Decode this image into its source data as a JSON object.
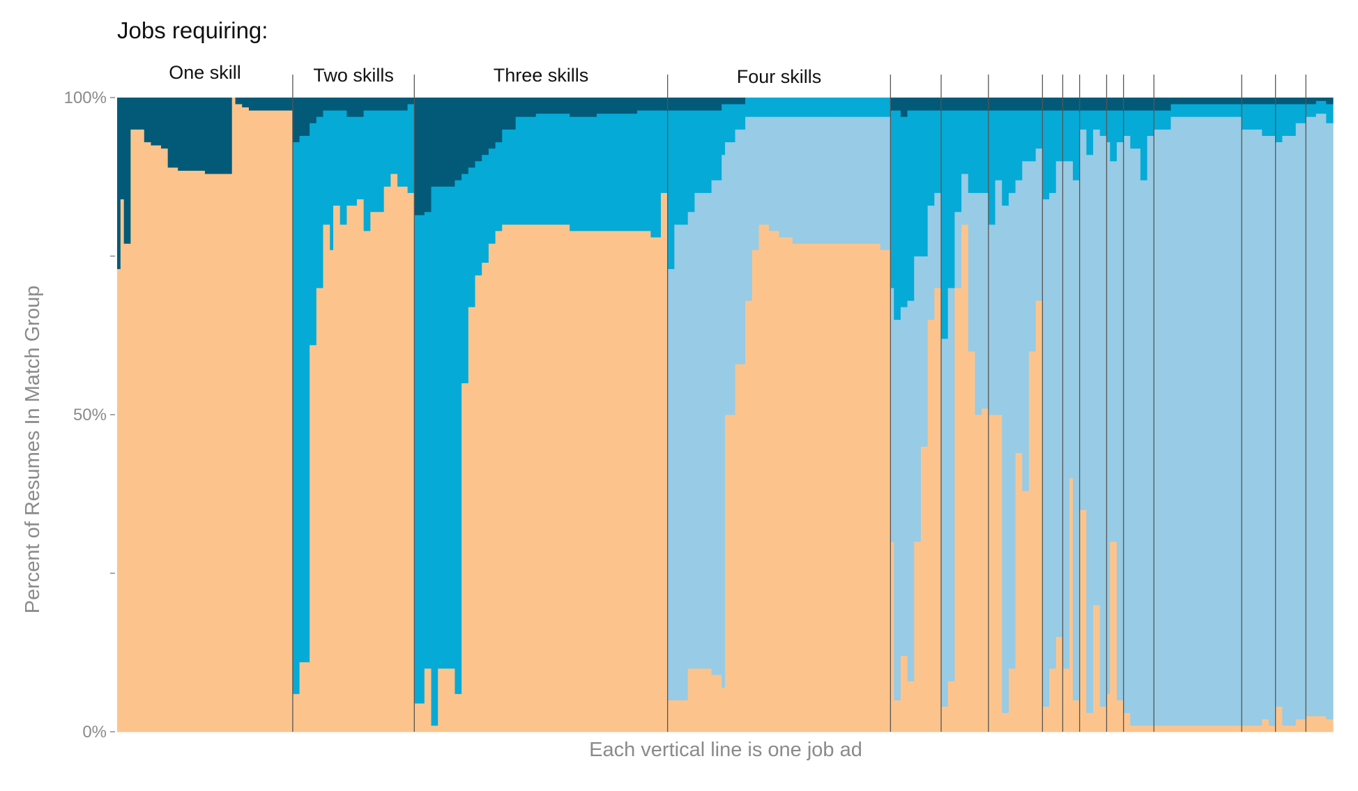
{
  "chart_data": {
    "type": "area",
    "subtype": "100% stacked bars, one column per job ad, grouped by skills required",
    "title": "Jobs requiring:",
    "xlabel": "Each vertical line is one job ad",
    "ylabel": "Percent of Resumes In Match Group",
    "ylim": [
      0,
      100
    ],
    "y_ticks": [
      {
        "value": 0,
        "label": "0%"
      },
      {
        "value": 25,
        "label": ""
      },
      {
        "value": 50,
        "label": "50%"
      },
      {
        "value": 75,
        "label": ""
      },
      {
        "value": 100,
        "label": "100%"
      }
    ],
    "total_job_ads": 360,
    "colors": {
      "orange": "#FCC48C",
      "light_blue": "#98CBE5",
      "medium_blue": "#06AAD6",
      "dark_blue": "#035A78",
      "divider": "#555555",
      "tick": "#8a8a8a"
    },
    "groups": [
      {
        "label": "One skill",
        "start": 0,
        "end": 52,
        "layers": [
          "orange",
          "dark_blue"
        ]
      },
      {
        "label": "Two skills",
        "start": 52,
        "end": 88,
        "layers": [
          "orange",
          "medium_blue",
          "dark_blue"
        ]
      },
      {
        "label": "Three skills",
        "start": 88,
        "end": 163,
        "layers": [
          "orange",
          "medium_blue",
          "dark_blue"
        ]
      },
      {
        "label": "Four skills",
        "start": 163,
        "end": 229,
        "layers": [
          "orange",
          "light_blue",
          "medium_blue",
          "dark_blue"
        ]
      },
      {
        "label": "",
        "start": 229,
        "end": 244,
        "layers": [
          "orange",
          "light_blue",
          "medium_blue",
          "dark_blue"
        ]
      },
      {
        "label": "",
        "start": 244,
        "end": 258,
        "layers": [
          "orange",
          "light_blue",
          "medium_blue",
          "dark_blue"
        ]
      },
      {
        "label": "",
        "start": 258,
        "end": 274,
        "layers": [
          "orange",
          "light_blue",
          "medium_blue",
          "dark_blue"
        ]
      },
      {
        "label": "",
        "start": 274,
        "end": 280,
        "layers": [
          "orange",
          "light_blue",
          "medium_blue",
          "dark_blue"
        ]
      },
      {
        "label": "",
        "start": 280,
        "end": 285,
        "layers": [
          "orange",
          "light_blue",
          "medium_blue",
          "dark_blue"
        ]
      },
      {
        "label": "",
        "start": 285,
        "end": 293,
        "layers": [
          "orange",
          "light_blue",
          "medium_blue",
          "dark_blue"
        ]
      },
      {
        "label": "",
        "start": 293,
        "end": 298,
        "layers": [
          "orange",
          "light_blue",
          "medium_blue",
          "dark_blue"
        ]
      },
      {
        "label": "",
        "start": 298,
        "end": 307,
        "layers": [
          "orange",
          "light_blue",
          "medium_blue",
          "dark_blue"
        ]
      },
      {
        "label": "",
        "start": 307,
        "end": 333,
        "layers": [
          "orange",
          "light_blue",
          "medium_blue",
          "dark_blue"
        ]
      },
      {
        "label": "",
        "start": 333,
        "end": 343,
        "layers": [
          "orange",
          "light_blue",
          "medium_blue",
          "dark_blue"
        ]
      },
      {
        "label": "",
        "start": 343,
        "end": 352,
        "layers": [
          "orange",
          "light_blue",
          "medium_blue",
          "dark_blue"
        ]
      },
      {
        "label": "",
        "start": 352,
        "end": 360,
        "layers": [
          "orange",
          "light_blue",
          "medium_blue",
          "dark_blue"
        ]
      }
    ],
    "segments": [
      {
        "s": 0,
        "e": 1,
        "v": [
          73,
          27
        ]
      },
      {
        "s": 1,
        "e": 2,
        "v": [
          84,
          16
        ]
      },
      {
        "s": 2,
        "e": 4,
        "v": [
          77,
          23
        ]
      },
      {
        "s": 4,
        "e": 8,
        "v": [
          95,
          5
        ]
      },
      {
        "s": 8,
        "e": 10,
        "v": [
          93,
          7
        ]
      },
      {
        "s": 10,
        "e": 13,
        "v": [
          92.5,
          7.5
        ]
      },
      {
        "s": 13,
        "e": 15,
        "v": [
          92,
          8
        ]
      },
      {
        "s": 15,
        "e": 18,
        "v": [
          89,
          11
        ]
      },
      {
        "s": 18,
        "e": 26,
        "v": [
          88.5,
          11.5
        ]
      },
      {
        "s": 26,
        "e": 34,
        "v": [
          88,
          12
        ]
      },
      {
        "s": 34,
        "e": 35,
        "v": [
          100,
          0
        ]
      },
      {
        "s": 35,
        "e": 37,
        "v": [
          99,
          1
        ]
      },
      {
        "s": 37,
        "e": 39,
        "v": [
          98.5,
          1.5
        ]
      },
      {
        "s": 39,
        "e": 52,
        "v": [
          98,
          2
        ]
      },
      {
        "s": 52,
        "e": 54,
        "v": [
          6,
          87,
          7
        ]
      },
      {
        "s": 54,
        "e": 57,
        "v": [
          11,
          83,
          6
        ]
      },
      {
        "s": 57,
        "e": 59,
        "v": [
          61,
          35,
          4
        ]
      },
      {
        "s": 59,
        "e": 61,
        "v": [
          70,
          27,
          3
        ]
      },
      {
        "s": 61,
        "e": 63,
        "v": [
          80,
          18,
          2
        ]
      },
      {
        "s": 63,
        "e": 64,
        "v": [
          76,
          22,
          2
        ]
      },
      {
        "s": 64,
        "e": 66,
        "v": [
          83,
          15,
          2
        ]
      },
      {
        "s": 66,
        "e": 68,
        "v": [
          80,
          18,
          2
        ]
      },
      {
        "s": 68,
        "e": 71,
        "v": [
          83,
          14,
          3
        ]
      },
      {
        "s": 71,
        "e": 73,
        "v": [
          84,
          13,
          3
        ]
      },
      {
        "s": 73,
        "e": 75,
        "v": [
          79,
          19,
          2
        ]
      },
      {
        "s": 75,
        "e": 79,
        "v": [
          82,
          16,
          2
        ]
      },
      {
        "s": 79,
        "e": 81,
        "v": [
          86,
          12,
          2
        ]
      },
      {
        "s": 81,
        "e": 83,
        "v": [
          88,
          10,
          2
        ]
      },
      {
        "s": 83,
        "e": 86,
        "v": [
          86,
          12,
          2
        ]
      },
      {
        "s": 86,
        "e": 88,
        "v": [
          85,
          14,
          1
        ]
      },
      {
        "s": 88,
        "e": 91,
        "v": [
          4.5,
          77,
          18.5
        ]
      },
      {
        "s": 91,
        "e": 93,
        "v": [
          10,
          72,
          18
        ]
      },
      {
        "s": 93,
        "e": 95,
        "v": [
          1,
          85,
          14
        ]
      },
      {
        "s": 95,
        "e": 97,
        "v": [
          10,
          76,
          14
        ]
      },
      {
        "s": 97,
        "e": 100,
        "v": [
          10,
          76,
          14
        ]
      },
      {
        "s": 100,
        "e": 102,
        "v": [
          6,
          81,
          13
        ]
      },
      {
        "s": 102,
        "e": 104,
        "v": [
          55,
          33,
          12
        ]
      },
      {
        "s": 104,
        "e": 106,
        "v": [
          67,
          22,
          11
        ]
      },
      {
        "s": 106,
        "e": 108,
        "v": [
          72,
          18,
          10
        ]
      },
      {
        "s": 108,
        "e": 110,
        "v": [
          74,
          17,
          9
        ]
      },
      {
        "s": 110,
        "e": 112,
        "v": [
          77,
          15,
          8
        ]
      },
      {
        "s": 112,
        "e": 114,
        "v": [
          79,
          14,
          7
        ]
      },
      {
        "s": 114,
        "e": 118,
        "v": [
          80,
          15,
          5
        ]
      },
      {
        "s": 118,
        "e": 124,
        "v": [
          80,
          17,
          3
        ]
      },
      {
        "s": 124,
        "e": 134,
        "v": [
          80,
          17.5,
          2.5
        ]
      },
      {
        "s": 134,
        "e": 142,
        "v": [
          79,
          18,
          3
        ]
      },
      {
        "s": 142,
        "e": 154,
        "v": [
          79,
          18.5,
          2.5
        ]
      },
      {
        "s": 154,
        "e": 158,
        "v": [
          79,
          19,
          2
        ]
      },
      {
        "s": 158,
        "e": 161,
        "v": [
          78,
          20,
          2
        ]
      },
      {
        "s": 161,
        "e": 163,
        "v": [
          85,
          13,
          2
        ]
      },
      {
        "s": 163,
        "e": 165,
        "v": [
          5,
          68,
          25,
          2
        ]
      },
      {
        "s": 165,
        "e": 169,
        "v": [
          5,
          75,
          18,
          2
        ]
      },
      {
        "s": 169,
        "e": 171,
        "v": [
          10,
          72,
          16,
          2
        ]
      },
      {
        "s": 171,
        "e": 176,
        "v": [
          10,
          75,
          13,
          2
        ]
      },
      {
        "s": 176,
        "e": 179,
        "v": [
          9,
          78,
          11,
          2
        ]
      },
      {
        "s": 179,
        "e": 180,
        "v": [
          7,
          84,
          8,
          1
        ]
      },
      {
        "s": 180,
        "e": 183,
        "v": [
          50,
          43,
          6,
          1
        ]
      },
      {
        "s": 183,
        "e": 186,
        "v": [
          58,
          37,
          4,
          1
        ]
      },
      {
        "s": 186,
        "e": 188,
        "v": [
          68,
          29,
          3,
          0
        ]
      },
      {
        "s": 188,
        "e": 190,
        "v": [
          76,
          21,
          3,
          0
        ]
      },
      {
        "s": 190,
        "e": 193,
        "v": [
          80,
          17,
          3,
          0
        ]
      },
      {
        "s": 193,
        "e": 196,
        "v": [
          79,
          18,
          3,
          0
        ]
      },
      {
        "s": 196,
        "e": 200,
        "v": [
          78,
          19,
          3,
          0
        ]
      },
      {
        "s": 200,
        "e": 212,
        "v": [
          77,
          20,
          3,
          0
        ]
      },
      {
        "s": 212,
        "e": 223,
        "v": [
          77,
          20,
          3,
          0
        ]
      },
      {
        "s": 223,
        "e": 226,
        "v": [
          77,
          20,
          3,
          0
        ]
      },
      {
        "s": 226,
        "e": 229,
        "v": [
          76,
          21,
          3,
          0
        ]
      },
      {
        "s": 229,
        "e": 230,
        "v": [
          30,
          40,
          28,
          2
        ]
      },
      {
        "s": 230,
        "e": 232,
        "v": [
          5,
          60,
          33,
          2
        ]
      },
      {
        "s": 232,
        "e": 234,
        "v": [
          12,
          55,
          30,
          3
        ]
      },
      {
        "s": 234,
        "e": 236,
        "v": [
          8,
          60,
          30,
          2
        ]
      },
      {
        "s": 236,
        "e": 238,
        "v": [
          30,
          45,
          23,
          2
        ]
      },
      {
        "s": 238,
        "e": 240,
        "v": [
          45,
          30,
          23,
          2
        ]
      },
      {
        "s": 240,
        "e": 242,
        "v": [
          65,
          18,
          15,
          2
        ]
      },
      {
        "s": 242,
        "e": 244,
        "v": [
          70,
          15,
          13,
          2
        ]
      },
      {
        "s": 244,
        "e": 246,
        "v": [
          4,
          58,
          36,
          2
        ]
      },
      {
        "s": 246,
        "e": 248,
        "v": [
          8,
          62,
          28,
          2
        ]
      },
      {
        "s": 248,
        "e": 250,
        "v": [
          70,
          12,
          16,
          2
        ]
      },
      {
        "s": 250,
        "e": 252,
        "v": [
          80,
          8,
          10,
          2
        ]
      },
      {
        "s": 252,
        "e": 254,
        "v": [
          60,
          25,
          13,
          2
        ]
      },
      {
        "s": 254,
        "e": 256,
        "v": [
          50,
          35,
          13,
          2
        ]
      },
      {
        "s": 256,
        "e": 258,
        "v": [
          51,
          34,
          13,
          2
        ]
      },
      {
        "s": 258,
        "e": 260,
        "v": [
          50,
          30,
          18,
          2
        ]
      },
      {
        "s": 260,
        "e": 262,
        "v": [
          50,
          37,
          11,
          2
        ]
      },
      {
        "s": 262,
        "e": 264,
        "v": [
          3,
          80,
          15,
          2
        ]
      },
      {
        "s": 264,
        "e": 266,
        "v": [
          10,
          75,
          13,
          2
        ]
      },
      {
        "s": 266,
        "e": 268,
        "v": [
          44,
          43,
          11,
          2
        ]
      },
      {
        "s": 268,
        "e": 270,
        "v": [
          38,
          52,
          8,
          2
        ]
      },
      {
        "s": 270,
        "e": 272,
        "v": [
          60,
          30,
          8,
          2
        ]
      },
      {
        "s": 272,
        "e": 274,
        "v": [
          68,
          24,
          6,
          2
        ]
      },
      {
        "s": 274,
        "e": 276,
        "v": [
          4,
          80,
          14,
          2
        ]
      },
      {
        "s": 276,
        "e": 278,
        "v": [
          10,
          75,
          13,
          2
        ]
      },
      {
        "s": 278,
        "e": 280,
        "v": [
          15,
          75,
          8,
          2
        ]
      },
      {
        "s": 280,
        "e": 282,
        "v": [
          10,
          80,
          8,
          2
        ]
      },
      {
        "s": 282,
        "e": 283,
        "v": [
          40,
          50,
          8,
          2
        ]
      },
      {
        "s": 283,
        "e": 285,
        "v": [
          5,
          82,
          11,
          2
        ]
      },
      {
        "s": 285,
        "e": 287,
        "v": [
          35,
          60,
          3,
          2
        ]
      },
      {
        "s": 287,
        "e": 289,
        "v": [
          3,
          88,
          7,
          2
        ]
      },
      {
        "s": 289,
        "e": 291,
        "v": [
          20,
          75,
          3,
          2
        ]
      },
      {
        "s": 291,
        "e": 293,
        "v": [
          4,
          90,
          4,
          2
        ]
      },
      {
        "s": 293,
        "e": 294,
        "v": [
          6,
          87,
          5,
          2
        ]
      },
      {
        "s": 294,
        "e": 296,
        "v": [
          30,
          60,
          8,
          2
        ]
      },
      {
        "s": 296,
        "e": 298,
        "v": [
          5,
          88,
          5,
          2
        ]
      },
      {
        "s": 298,
        "e": 300,
        "v": [
          3,
          91,
          4,
          2
        ]
      },
      {
        "s": 300,
        "e": 303,
        "v": [
          1,
          91,
          6,
          2
        ]
      },
      {
        "s": 303,
        "e": 305,
        "v": [
          1,
          86,
          11,
          2
        ]
      },
      {
        "s": 305,
        "e": 307,
        "v": [
          1,
          93,
          4,
          2
        ]
      },
      {
        "s": 307,
        "e": 312,
        "v": [
          1,
          94,
          3,
          2
        ]
      },
      {
        "s": 312,
        "e": 320,
        "v": [
          1,
          96,
          2,
          1
        ]
      },
      {
        "s": 320,
        "e": 328,
        "v": [
          1,
          96,
          2,
          1
        ]
      },
      {
        "s": 328,
        "e": 333,
        "v": [
          1,
          96,
          2,
          1
        ]
      },
      {
        "s": 333,
        "e": 336,
        "v": [
          1,
          94,
          4,
          1
        ]
      },
      {
        "s": 336,
        "e": 339,
        "v": [
          1,
          94,
          4,
          1
        ]
      },
      {
        "s": 339,
        "e": 341,
        "v": [
          2,
          92,
          5,
          1
        ]
      },
      {
        "s": 341,
        "e": 343,
        "v": [
          1,
          93,
          5,
          1
        ]
      },
      {
        "s": 343,
        "e": 345,
        "v": [
          4,
          89,
          6,
          1
        ]
      },
      {
        "s": 345,
        "e": 347,
        "v": [
          1,
          93,
          5,
          1
        ]
      },
      {
        "s": 347,
        "e": 349,
        "v": [
          1,
          93,
          5,
          1
        ]
      },
      {
        "s": 349,
        "e": 352,
        "v": [
          2,
          94,
          3,
          1
        ]
      },
      {
        "s": 352,
        "e": 355,
        "v": [
          2.5,
          94.5,
          2,
          1
        ]
      },
      {
        "s": 355,
        "e": 358,
        "v": [
          2.5,
          95,
          2,
          0.5
        ]
      },
      {
        "s": 358,
        "e": 360,
        "v": [
          2,
          94,
          3,
          1
        ]
      }
    ]
  }
}
